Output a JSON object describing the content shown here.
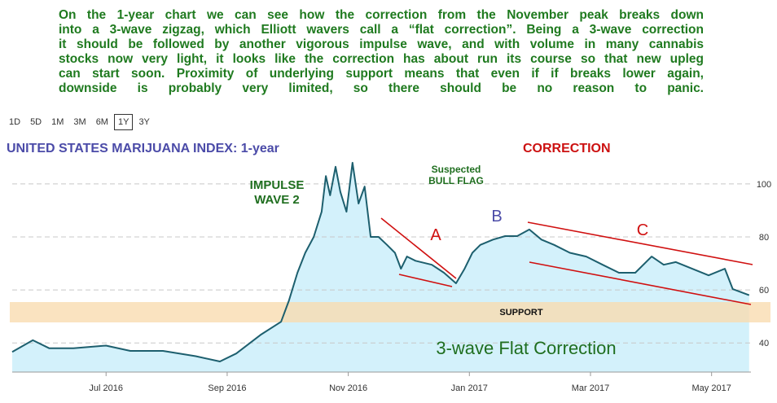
{
  "paragraph": [
    "On the 1-year chart we can see how the correction from the November peak breaks down",
    "into a 3-wave zigzag, which Elliott wavers call a “flat correction”. Being a 3-wave correction",
    "it should be followed by another vigorous impulse wave, and with volume in many cannabis",
    "stocks now very light, it looks like the correction has about run its course so that new upleg",
    "can start soon. Proximity of underlying support means that even if if breaks lower again,",
    "downside is probably very limited, so there should be no reason to panic."
  ],
  "ranges": [
    "1D",
    "5D",
    "1M",
    "3M",
    "6M",
    "1Y",
    "3Y"
  ],
  "selected_range": "1Y",
  "chart_data": {
    "type": "area",
    "title": "UNITED STATES MARIJUANA INDEX: 1-year",
    "annotations": {
      "correction": "CORRECTION",
      "impulse_1": "IMPULSE",
      "impulse_2": "WAVE 2",
      "flag_1": "Suspected",
      "flag_2": "BULL FLAG",
      "a": "A",
      "b": "B",
      "c": "C",
      "support": "SUPPORT",
      "flat": "3-wave Flat Correction"
    },
    "x": [
      5.45,
      5.79,
      6.06,
      6.46,
      7.0,
      7.4,
      7.94,
      8.48,
      8.88,
      9.15,
      9.55,
      9.89,
      10.02,
      10.16,
      10.29,
      10.43,
      10.56,
      10.63,
      10.7,
      10.79,
      10.87,
      10.97,
      11.07,
      11.17,
      11.27,
      11.37,
      11.5,
      11.64,
      11.77,
      11.87,
      11.97,
      12.11,
      12.38,
      12.58,
      12.78,
      12.92,
      13.05,
      13.18,
      13.39,
      13.59,
      13.79,
      13.99,
      14.19,
      14.4,
      14.66,
      14.93,
      15.2,
      15.47,
      15.74,
      16.01,
      16.21,
      16.41,
      16.68,
      16.95,
      17.22,
      17.35,
      17.62
    ],
    "values": [
      36.6,
      41,
      38,
      38,
      39,
      37,
      37,
      35,
      33,
      36,
      43,
      48,
      56,
      66.5,
      74,
      80,
      89.5,
      103,
      95.7,
      106.5,
      97,
      89.5,
      108,
      92.6,
      99,
      80,
      80,
      77,
      74,
      68,
      72.6,
      71,
      69.5,
      66.5,
      62.5,
      68,
      74,
      77,
      79,
      80.3,
      80.3,
      82.8,
      79,
      77,
      74,
      72.6,
      69.5,
      66.5,
      66.5,
      72.6,
      69.5,
      70.5,
      68,
      65.5,
      68,
      60.3,
      58
    ],
    "color": "#1d5f6e",
    "fill": "#d3f1fb",
    "xlim": [
      5.45,
      17.65
    ],
    "ylim": [
      29,
      109.5
    ],
    "xticks": [
      {
        "value": 7,
        "label": "Jul 2016"
      },
      {
        "value": 9,
        "label": "Sep 2016"
      },
      {
        "value": 11,
        "label": "Nov 2016"
      },
      {
        "value": 13,
        "label": "Jan 2017"
      },
      {
        "value": 15,
        "label": "Mar 2017"
      },
      {
        "value": 17,
        "label": "May 2017"
      }
    ],
    "yticks": [
      40,
      60,
      80,
      100
    ],
    "grid": true
  }
}
